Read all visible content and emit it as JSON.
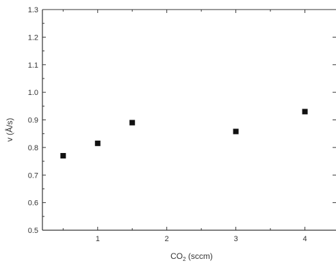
{
  "chart_data": {
    "type": "scatter",
    "xlabel": "CO",
    "xlabel_subscript": "2",
    "xlabel_suffix": " (sccm)",
    "ylabel": "v (Å/s)",
    "xlim": [
      0.2,
      4.45
    ],
    "ylim": [
      0.5,
      1.3
    ],
    "x_ticks": [
      1,
      2,
      3,
      4
    ],
    "x_tick_labels": [
      "1",
      "2",
      "3",
      "4"
    ],
    "y_ticks": [
      0.5,
      0.6,
      0.7,
      0.8,
      0.9,
      1.0,
      1.1,
      1.2,
      1.3
    ],
    "y_tick_labels": [
      "0.5",
      "0.6",
      "0.7",
      "0.8",
      "0.9",
      "1.0",
      "1.1",
      "1.2",
      "1.3"
    ],
    "grid": false,
    "marker": "square",
    "marker_color": "#111111",
    "axis_color": "#333333",
    "series": [
      {
        "x": [
          0.5,
          1.0,
          1.5,
          3.0,
          4.0
        ],
        "y": [
          0.77,
          0.815,
          0.89,
          0.858,
          0.93
        ]
      }
    ]
  }
}
